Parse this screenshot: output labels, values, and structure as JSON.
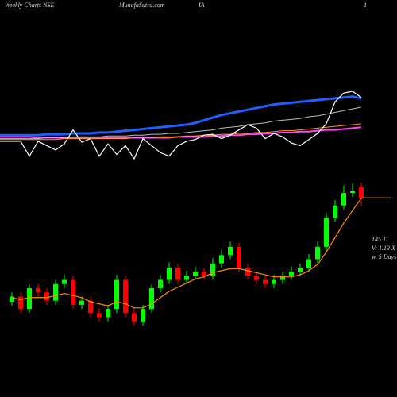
{
  "chart_data": [
    {
      "type": "candlestick",
      "title": "Weekly Charts NSE",
      "source": "MunafaSutra.com",
      "symbol": "IA",
      "corner": "1",
      "annotations": [
        "V: 1.13 X",
        "w. 5 Days"
      ],
      "up_color": "#00ff00",
      "down_color": "#ff0000",
      "ma_color": "#ff8c00",
      "open": [
        95,
        97.5,
        91.5,
        101.5,
        99.5,
        95.5,
        103.5,
        105.5,
        93.5,
        95.5,
        89.5,
        87.5,
        91.5,
        105.5,
        89.5,
        85.5,
        91.5,
        101.5,
        105.5,
        111.5,
        105.5,
        107.5,
        109.5,
        107.5,
        113.5,
        117.5,
        121.5,
        111.5,
        107.5,
        105.5,
        103.5,
        105.5,
        107.5,
        109.5,
        111.5,
        115.5,
        121.5,
        135.5,
        141.5,
        147.5,
        150.2
      ],
      "high": [
        99.5,
        99.5,
        103.5,
        103.5,
        101.5,
        105.5,
        108,
        107.5,
        97.5,
        97.5,
        92,
        93.5,
        108,
        107.5,
        92,
        93.5,
        103.5,
        108,
        114,
        113.5,
        110,
        112,
        111.5,
        116,
        120,
        124,
        123.5,
        113.5,
        109.5,
        107.5,
        108,
        109.5,
        112,
        113.5,
        118,
        124,
        138,
        144,
        151,
        152,
        152.5
      ],
      "low": [
        93,
        89.5,
        89.5,
        97.5,
        93.5,
        93.5,
        101.5,
        91.5,
        91.5,
        87.5,
        85.5,
        85.5,
        89.5,
        87.5,
        83.5,
        83.5,
        89.5,
        99.5,
        103.5,
        103.5,
        103.5,
        105.5,
        105.5,
        105.5,
        111.5,
        115.5,
        109.5,
        105.5,
        103.5,
        101.5,
        101.5,
        103.5,
        105.5,
        107.5,
        109.5,
        113.5,
        119.5,
        133.5,
        139.5,
        145.5,
        141
      ],
      "close": [
        97.5,
        91.5,
        101.5,
        99.5,
        95.5,
        103.5,
        105.5,
        93.5,
        95.5,
        89.5,
        87.5,
        91.5,
        105.5,
        89.5,
        85.5,
        91.5,
        101.5,
        105.5,
        111.5,
        105.5,
        107.5,
        109.5,
        107.5,
        113.5,
        117.5,
        121.5,
        111.5,
        107.5,
        105.5,
        103.5,
        105.5,
        107.5,
        109.5,
        111.5,
        115.5,
        121.5,
        135.5,
        141.5,
        147.5,
        148.3,
        145.11
      ],
      "ma": [
        97,
        96,
        97,
        97,
        97,
        98,
        99,
        98,
        97,
        95,
        94,
        93,
        95,
        94,
        92,
        92,
        94,
        97,
        100,
        102,
        104,
        106,
        107,
        109,
        110,
        111,
        111,
        110,
        109,
        108,
        107,
        107,
        107,
        108,
        110,
        113,
        119,
        126,
        133,
        139,
        145
      ]
    },
    {
      "type": "line",
      "series": [
        {
          "color": "#ff44ff",
          "width": 2,
          "values": [
            30,
            30,
            30,
            29,
            29,
            29,
            29,
            29,
            29,
            29,
            29,
            29,
            29,
            29,
            29,
            29,
            29,
            29,
            29,
            30,
            30,
            30,
            30,
            31,
            31,
            32,
            32,
            33,
            33,
            34,
            34,
            35,
            35,
            36,
            36,
            37,
            38,
            38,
            39,
            40,
            41
          ]
        },
        {
          "color": "#ff9a1a",
          "width": 1,
          "values": [
            27,
            27,
            27,
            27,
            27,
            27,
            28,
            28,
            28,
            28,
            28,
            28,
            28,
            28,
            29,
            29,
            29,
            30,
            30,
            30,
            31,
            31,
            32,
            32,
            33,
            33,
            34,
            34,
            35,
            35,
            36,
            37,
            37,
            38,
            39,
            40,
            41,
            42,
            43,
            44,
            45
          ]
        },
        {
          "color": "#bbbbbb",
          "width": 1,
          "values": [
            28,
            28,
            28,
            28,
            29,
            29,
            29,
            30,
            30,
            30,
            30,
            31,
            31,
            31,
            32,
            32,
            33,
            33,
            34,
            34,
            35,
            36,
            37,
            38,
            40,
            41,
            42,
            44,
            45,
            46,
            48,
            49,
            50,
            51,
            53,
            54,
            56,
            58,
            60,
            62,
            64
          ]
        },
        {
          "color": "#1f5fff",
          "width": 3,
          "values": [
            32,
            32,
            32,
            32,
            33,
            33,
            33,
            34,
            34,
            34,
            35,
            35,
            36,
            37,
            38,
            39,
            40,
            41,
            42,
            43,
            44,
            46,
            49,
            52,
            55,
            57,
            59,
            61,
            63,
            65,
            67,
            68,
            69,
            70,
            71,
            72,
            73,
            74,
            75,
            76,
            74
          ]
        },
        {
          "color": "#ffffff",
          "width": 1.2,
          "values": [
            25,
            25,
            8,
            25,
            20,
            15,
            22,
            38,
            24,
            28,
            8,
            22,
            10,
            20,
            5,
            28,
            20,
            12,
            8,
            20,
            25,
            27,
            32,
            33,
            28,
            32,
            38,
            44,
            40,
            28,
            34,
            30,
            23,
            20,
            27,
            34,
            45,
            70,
            80,
            82,
            75
          ]
        }
      ]
    }
  ]
}
